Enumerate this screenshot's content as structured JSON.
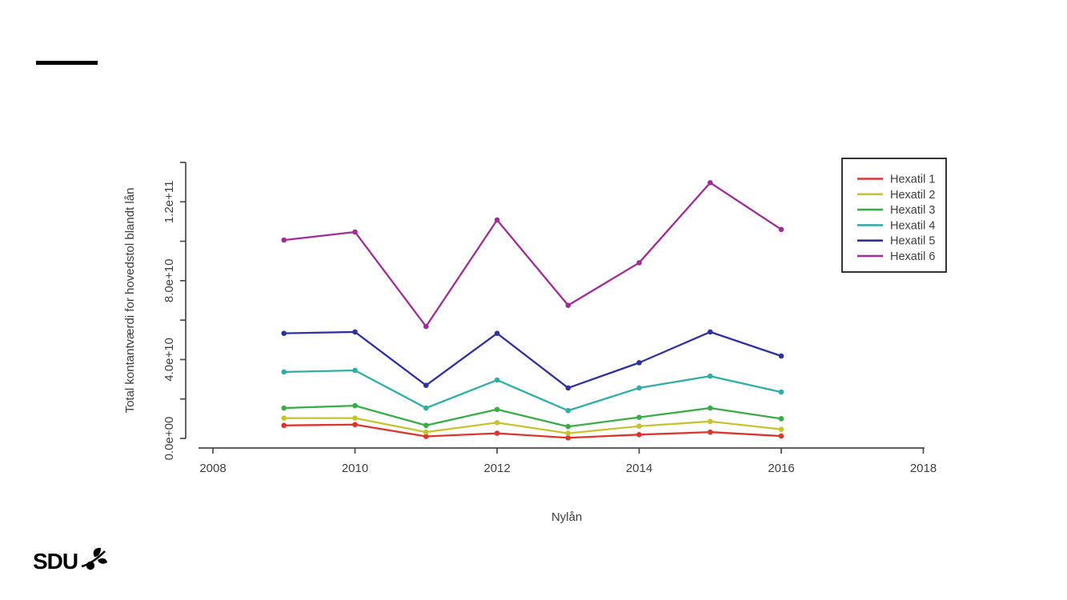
{
  "page": {
    "background": "#ffffff",
    "top_rule_color": "#000000"
  },
  "footer": {
    "brand": "SDU"
  },
  "chart_data": {
    "type": "line",
    "title": "",
    "xlabel": "Nylån",
    "ylabel": "Total kontantværdi for hovedstol blandt lån",
    "xlim": [
      2008,
      2018
    ],
    "ylim": [
      0,
      140000000000.0
    ],
    "grid": false,
    "legend_position": "top-right",
    "axis_color": "#4a4a4a",
    "text_color": "#3d3d3d",
    "x": [
      2009,
      2010,
      2011,
      2012,
      2013,
      2014,
      2015,
      2016
    ],
    "x_ticks": [
      {
        "value": 2008,
        "label": "2008"
      },
      {
        "value": 2010,
        "label": "2010"
      },
      {
        "value": 2012,
        "label": "2012"
      },
      {
        "value": 2014,
        "label": "2014"
      },
      {
        "value": 2016,
        "label": "2016"
      },
      {
        "value": 2018,
        "label": "2018"
      }
    ],
    "y_ticks": [
      {
        "value": 0,
        "label": "0.0e+00"
      },
      {
        "value": 20000000000.0,
        "label": ""
      },
      {
        "value": 40000000000.0,
        "label": "4.0e+10"
      },
      {
        "value": 60000000000.0,
        "label": ""
      },
      {
        "value": 80000000000.0,
        "label": "8.0e+10"
      },
      {
        "value": 100000000000.0,
        "label": ""
      },
      {
        "value": 120000000000.0,
        "label": "1.2e+11"
      },
      {
        "value": 140000000000.0,
        "label": ""
      }
    ],
    "series": [
      {
        "name": "Hexatil 1",
        "color": "#DC352D",
        "values": [
          6600000000.0,
          7000000000.0,
          1000000000.0,
          2600000000.0,
          300000000.0,
          1900000000.0,
          3200000000.0,
          1200000000.0
        ]
      },
      {
        "name": "Hexatil 2",
        "color": "#C5C42F",
        "values": [
          10300000000.0,
          10300000000.0,
          3200000000.0,
          8000000000.0,
          2600000000.0,
          6200000000.0,
          8600000000.0,
          4600000000.0
        ]
      },
      {
        "name": "Hexatil 3",
        "color": "#3AAD49",
        "values": [
          15400000000.0,
          16600000000.0,
          6600000000.0,
          14700000000.0,
          6000000000.0,
          10700000000.0,
          15400000000.0,
          10000000000.0
        ]
      },
      {
        "name": "Hexatil 4",
        "color": "#2FAEA5",
        "values": [
          33700000000.0,
          34500000000.0,
          15400000000.0,
          29600000000.0,
          14100000000.0,
          25600000000.0,
          31600000000.0,
          23500000000.0
        ]
      },
      {
        "name": "Hexatil 5",
        "color": "#2F319D",
        "values": [
          53300000000.0,
          54000000000.0,
          26900000000.0,
          53300000000.0,
          25600000000.0,
          38400000000.0,
          54000000000.0,
          41800000000.0
        ]
      },
      {
        "name": "Hexatil 6",
        "color": "#9E2D97",
        "values": [
          100600000000.0,
          104700000000.0,
          56800000000.0,
          110800000000.0,
          67500000000.0,
          89100000000.0,
          129700000000.0,
          106000000000.0
        ]
      }
    ]
  }
}
